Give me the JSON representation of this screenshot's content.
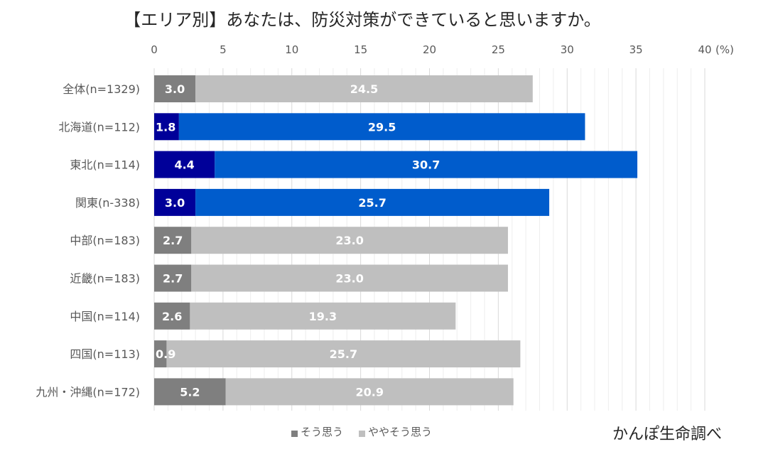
{
  "chart_data": {
    "type": "bar",
    "orientation": "horizontal",
    "stacked": true,
    "title": "【エリア別】あなたは、防災対策ができていると思いますか。",
    "xlabel": "",
    "ylabel": "",
    "unit_label": "(%)",
    "xlim": [
      0,
      40
    ],
    "xticks": [
      0,
      5,
      10,
      15,
      20,
      25,
      30,
      35,
      40
    ],
    "xtick_labels": [
      "0",
      "5",
      "10",
      "15",
      "20",
      "25",
      "30",
      "35",
      "40"
    ],
    "minor_grid_step": 1,
    "grid": true,
    "categories": [
      "全体(n=1329)",
      "北海道(n=112)",
      "東北(n=114)",
      "関東(n-338)",
      "中部(n=183)",
      "近畿(n=183)",
      "中国(n=114)",
      "四国(n=113)",
      "九州・沖縄(n=172)"
    ],
    "series": [
      {
        "name": "そう思う",
        "values": [
          3.0,
          1.8,
          4.4,
          3.0,
          2.7,
          2.7,
          2.6,
          0.9,
          5.2
        ],
        "labels": [
          "3.0",
          "1.8",
          "4.4",
          "3.0",
          "2.7",
          "2.7",
          "2.6",
          "0.9",
          "5.2"
        ]
      },
      {
        "name": "ややそう思う",
        "values": [
          24.5,
          29.5,
          30.7,
          25.7,
          23.0,
          23.0,
          19.3,
          25.7,
          20.9
        ],
        "labels": [
          "24.5",
          "29.5",
          "30.7",
          "25.7",
          "23.0",
          "23.0",
          "19.3",
          "25.7",
          "20.9"
        ]
      }
    ],
    "highlighted_categories": [
      1,
      2,
      3
    ],
    "legend_position": "bottom-center",
    "source_note": "かんぽ生命調べ"
  },
  "colors": {
    "series1_default": "#7f7f7f",
    "series2_default": "#bfbfbf",
    "series1_highlight": "#000099",
    "series2_highlight": "#005ccc",
    "grid_major": "#d9d9d9",
    "grid_minor": "#eeeeee"
  }
}
